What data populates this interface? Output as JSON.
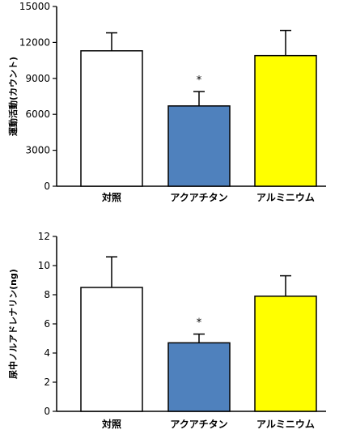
{
  "chart_data": [
    {
      "type": "bar",
      "title": "",
      "xlabel": "",
      "ylabel": "運動活動(カウント)",
      "categories": [
        "対照",
        "アクアチタン",
        "アルミニウム"
      ],
      "values": [
        11300,
        6700,
        10900
      ],
      "errors": [
        1500,
        1200,
        2100
      ],
      "annotations": [
        "",
        "*",
        ""
      ],
      "colors": [
        "#ffffff",
        "#4f81bd",
        "#ffff00"
      ],
      "ylim": [
        0,
        15000
      ],
      "yticks": [
        0,
        3000,
        6000,
        9000,
        12000,
        15000
      ],
      "ytick_labels": [
        "0",
        "3000",
        "6000",
        "9000",
        "12000",
        "15000"
      ],
      "grid": false
    },
    {
      "type": "bar",
      "title": "",
      "xlabel": "",
      "ylabel": "尿中ノルアドレナリン(ng)",
      "categories": [
        "対照",
        "アクアチタン",
        "アルミニウム"
      ],
      "values": [
        8.5,
        4.7,
        7.9
      ],
      "errors": [
        2.1,
        0.6,
        1.4
      ],
      "annotations": [
        "",
        "*",
        ""
      ],
      "colors": [
        "#ffffff",
        "#4f81bd",
        "#ffff00"
      ],
      "ylim": [
        0,
        12
      ],
      "yticks": [
        0,
        2,
        4,
        6,
        8,
        10,
        12
      ],
      "ytick_labels": [
        "0",
        "2",
        "4",
        "6",
        "8",
        "10",
        "12"
      ],
      "grid": false
    }
  ]
}
